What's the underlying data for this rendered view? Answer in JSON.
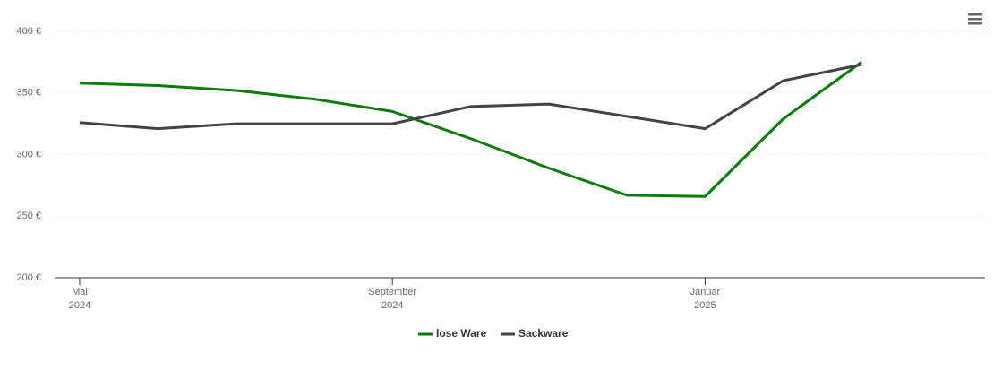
{
  "chart_data": {
    "type": "line",
    "x": [
      "2024-05",
      "2024-06",
      "2024-07",
      "2024-08",
      "2024-09",
      "2024-10",
      "2024-11",
      "2024-12",
      "2025-01",
      "2025-02",
      "2025-03"
    ],
    "series": [
      {
        "name": "lose Ware",
        "color": "#0b7d0b",
        "values": [
          358,
          356,
          352,
          345,
          335,
          313,
          289,
          267,
          266,
          329,
          375
        ]
      },
      {
        "name": "Sackware",
        "color": "#434348",
        "values": [
          326,
          321,
          325,
          325,
          325,
          339,
          341,
          331,
          321,
          360,
          373
        ]
      }
    ],
    "ylim": [
      200,
      400
    ],
    "yticks": [
      {
        "value": 200,
        "label": "200 €"
      },
      {
        "value": 250,
        "label": "250 €"
      },
      {
        "value": 300,
        "label": "300 €"
      },
      {
        "value": 350,
        "label": "350 €"
      },
      {
        "value": 400,
        "label": "400 €"
      }
    ],
    "xticks": [
      {
        "value": "2024-05",
        "label": [
          "Mai",
          "2024"
        ]
      },
      {
        "value": "2024-09",
        "label": [
          "September",
          "2024"
        ]
      },
      {
        "value": "2025-01",
        "label": [
          "Januar",
          "2025"
        ]
      }
    ],
    "grid": true
  }
}
